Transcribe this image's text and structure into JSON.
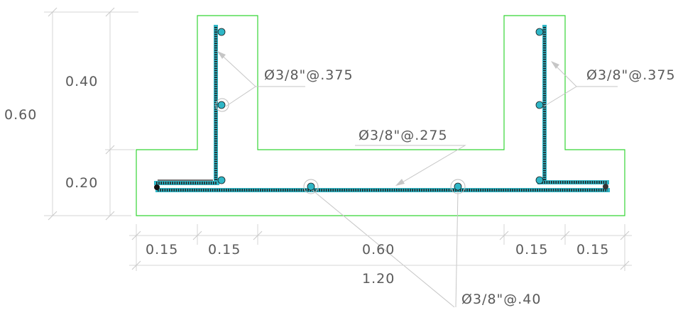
{
  "dimensions": {
    "total_height": "0.60",
    "upper_height": "0.40",
    "lower_height": "0.20",
    "bottom_segments": [
      "0.15",
      "0.15",
      "0.60",
      "0.15",
      "0.15"
    ],
    "total_width": "1.20"
  },
  "rebar_labels": {
    "left_wall": "Ø3/8\"@.375",
    "right_wall": "Ø3/8\"@.375",
    "slab_top": "Ø3/8\"@.275",
    "slab_bottom": "Ø3/8\"@.40"
  },
  "colors": {
    "concrete_outline": "#35d535",
    "rebar": "#2fb6c6",
    "dimension": "#5a5a5a"
  }
}
